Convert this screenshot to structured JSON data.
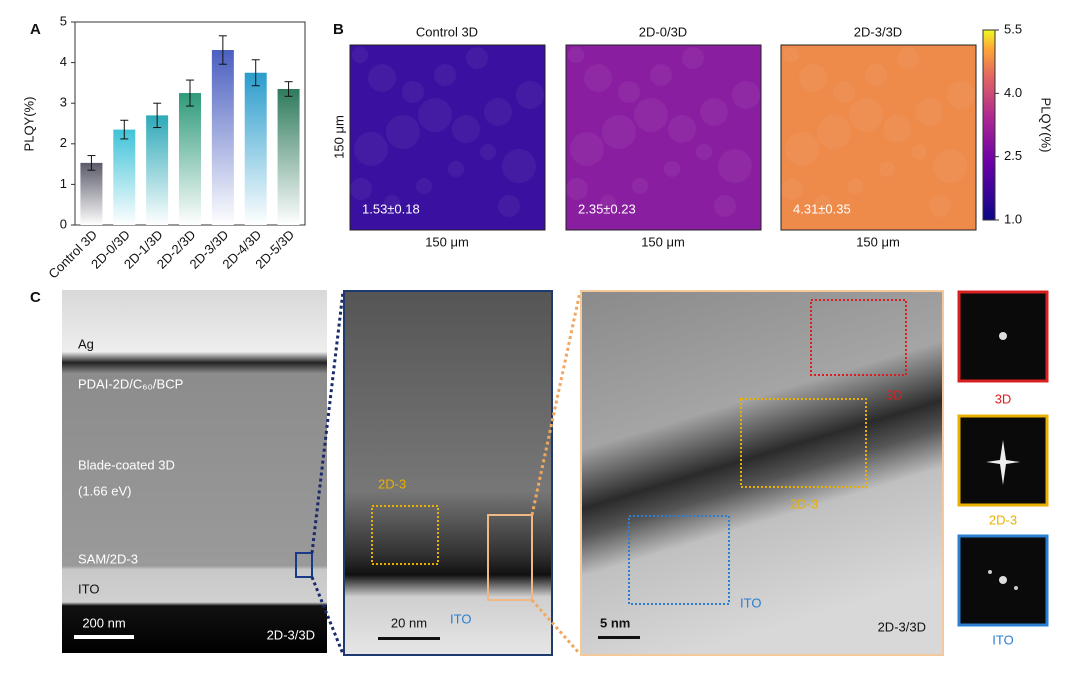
{
  "chart_data": {
    "type": "bar",
    "panel_label": "A",
    "y_label": "PLQY(%)",
    "categories": [
      "Control 3D",
      "2D-0/3D",
      "2D-1/3D",
      "2D-2/3D",
      "2D-3/3D",
      "2D-4/3D",
      "2D-5/3D"
    ],
    "values": [
      1.53,
      2.35,
      2.7,
      3.25,
      4.31,
      3.75,
      3.35
    ],
    "errors": [
      0.18,
      0.23,
      0.3,
      0.32,
      0.35,
      0.32,
      0.18
    ],
    "colors": [
      "#5a5a6a",
      "#3fc3d8",
      "#2ea9b8",
      "#2e9a7a",
      "#4a5fc0",
      "#2a9ccc",
      "#2e7a5c"
    ],
    "ylim": [
      0,
      5
    ],
    "yticks": [
      0,
      1,
      2,
      3,
      4,
      5
    ]
  },
  "panel_b": {
    "label": "B",
    "axis_label": "150 μm",
    "maps": [
      {
        "title": "Control 3D",
        "value": "1.53±0.18",
        "color": "#3a10a0"
      },
      {
        "title": "2D-0/3D",
        "value": "2.35±0.23",
        "color": "#8a1ea0"
      },
      {
        "title": "2D-3/3D",
        "value": "4.31±0.35",
        "color": "#ee8a4a"
      }
    ],
    "colorbar": {
      "label": "PLQY(%)",
      "range": [
        1.0,
        5.5
      ],
      "ticks": [
        {
          "value": 1.0,
          "label": "1.0"
        },
        {
          "value": 2.5,
          "label": "2.5"
        },
        {
          "value": 4.0,
          "label": "4.0"
        },
        {
          "value": 5.5,
          "label": "5.5"
        }
      ]
    }
  },
  "panel_c": {
    "label": "C",
    "cross_section": {
      "layers": [
        "Ag",
        "PDAI-2D/C₆₀/BCP",
        "Blade-coated 3D",
        "(1.66 eV)",
        "SAM/2D-3",
        "ITO"
      ],
      "scale": "200 nm",
      "sample": "2D-3/3D"
    },
    "zoom1": {
      "region": "2D-3",
      "substrate": "ITO",
      "scale": "20 nm"
    },
    "zoom2": {
      "regions": [
        "3D",
        "2D-3",
        "ITO"
      ],
      "scale": "5 nm",
      "sample": "2D-3/3D"
    },
    "fft": [
      "3D",
      "2D-3",
      "ITO"
    ]
  }
}
